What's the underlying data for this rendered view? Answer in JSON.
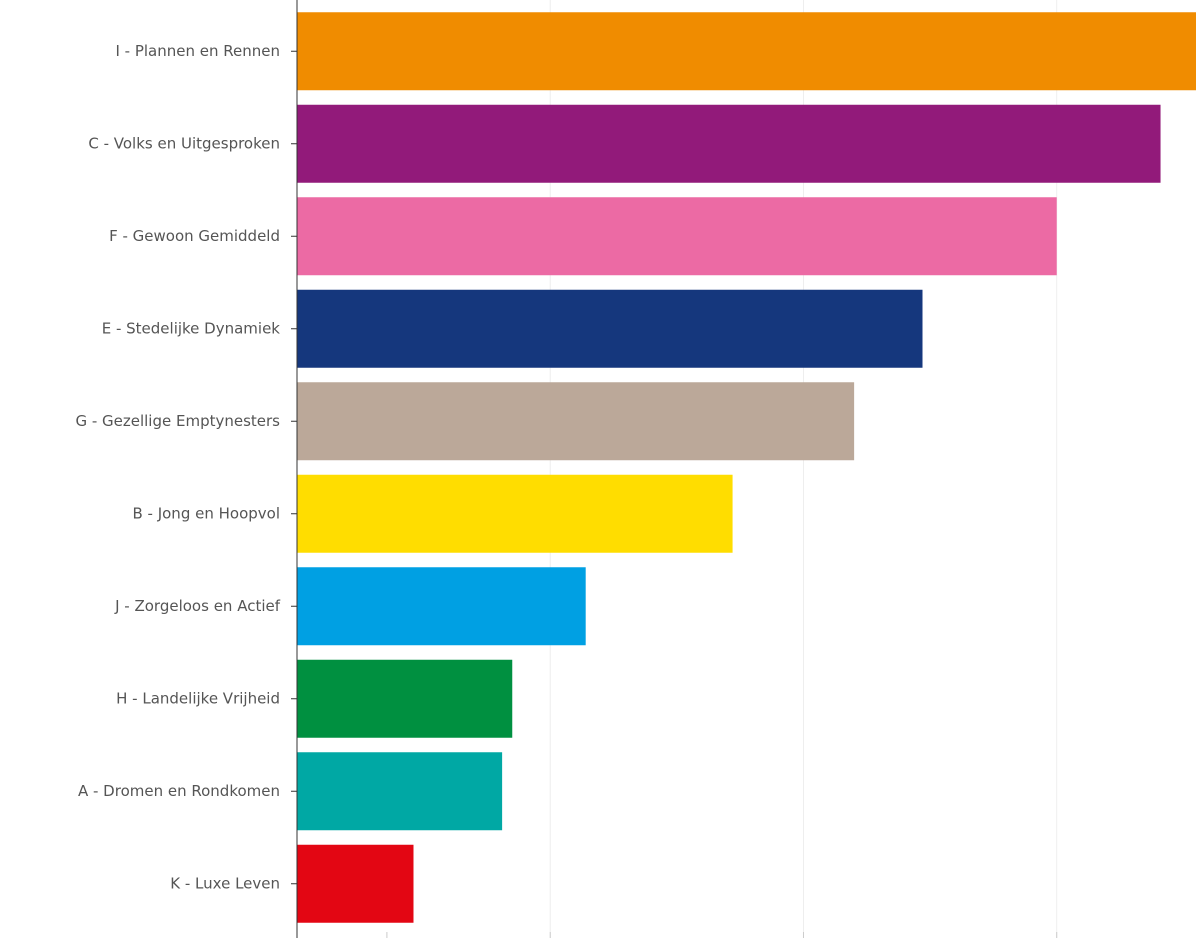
{
  "chart_data": {
    "type": "bar",
    "orientation": "horizontal",
    "title": "",
    "xlabel": "",
    "ylabel": "",
    "grid": true,
    "xlim": [
      0,
      35.5
    ],
    "categories": [
      "I - Plannen en Rennen",
      "C - Volks en Uitgesproken",
      "F - Gewoon Gemiddeld",
      "E - Stedelijke Dynamiek",
      "G - Gezellige Emptynesters",
      "B - Jong en Hoopvol",
      "J - Zorgeloos en Actief",
      "H - Landelijke Vrijheid",
      "A - Dromen en Rondkomen",
      "K - Luxe Leven"
    ],
    "values": [
      35.5,
      34.1,
      30.0,
      24.7,
      22.0,
      17.2,
      11.4,
      8.5,
      8.1,
      4.6
    ],
    "colors": [
      "#F08C00",
      "#921A7A",
      "#EC6AA4",
      "#15377D",
      "#BBA899",
      "#FFDD00",
      "#00A0E3",
      "#009040",
      "#00A8A4",
      "#E30613"
    ]
  }
}
